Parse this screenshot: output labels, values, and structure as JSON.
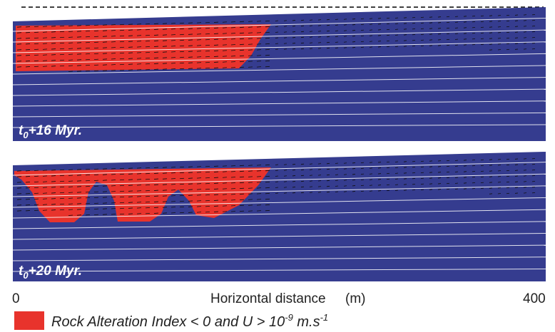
{
  "panels": [
    {
      "label": {
        "base": "t",
        "sub": "0",
        "rest": "+16 Myr."
      }
    },
    {
      "label": {
        "base": "t",
        "sub": "0",
        "rest": "+20 Myr."
      }
    }
  ],
  "x_axis": {
    "start": "0",
    "title": "Horizontal distance",
    "unit": "(m)",
    "end": "400"
  },
  "legend": {
    "text": "Rock Alteration Index < 0  and  U > 10",
    "exp": "-9",
    "unit": " m.s",
    "unit_exp": "-1"
  }
}
